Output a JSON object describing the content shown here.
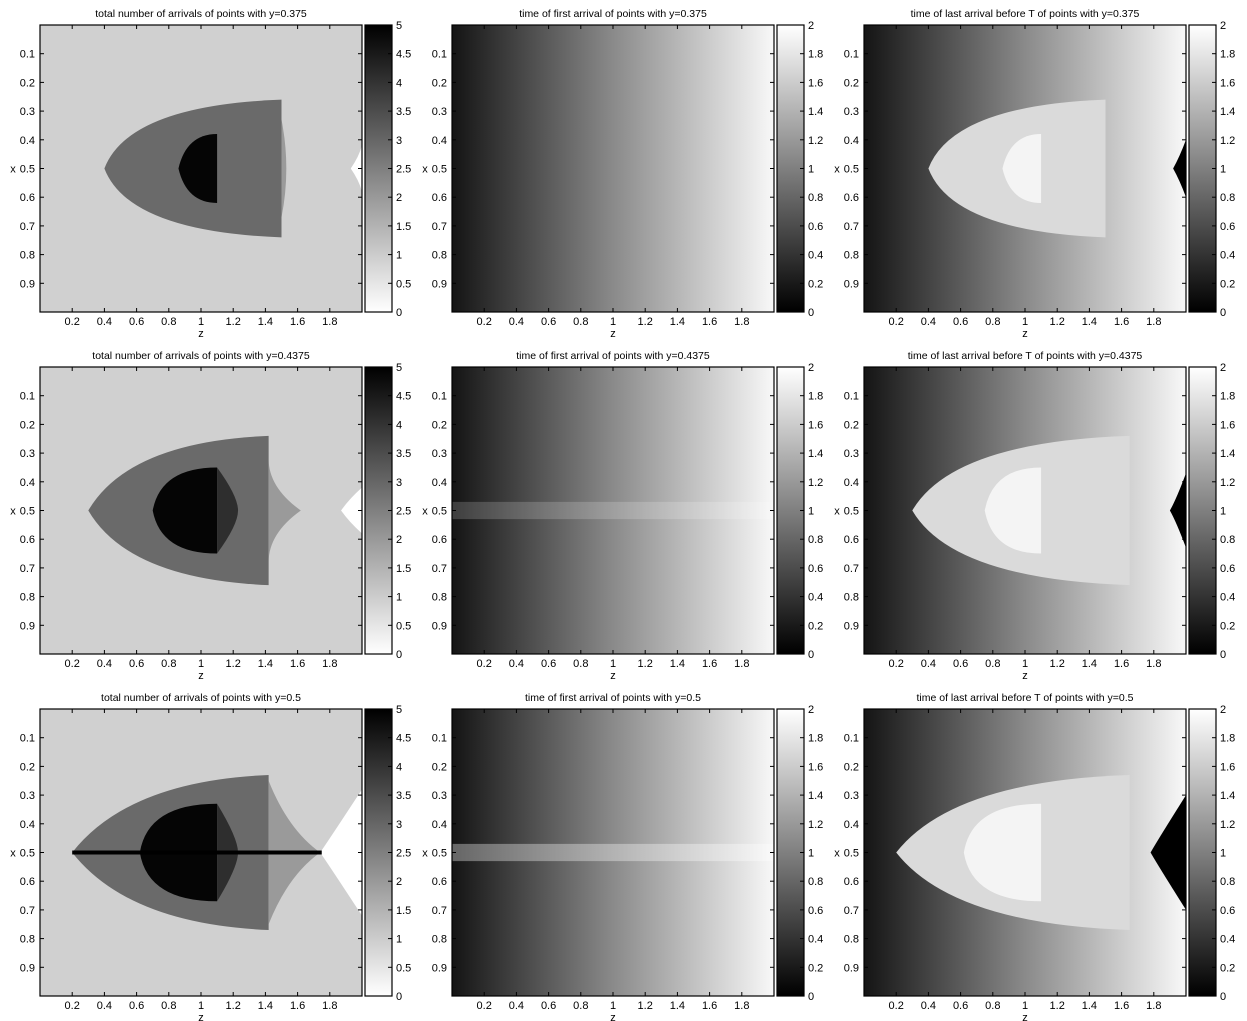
{
  "figure": {
    "panels": [
      {
        "title": "total number of arrivals of points with y=0.375",
        "kind": "count",
        "y": 0.375,
        "xlabel": "z",
        "ylabel": "x"
      },
      {
        "title": "time of first arrival of points with y=0.375",
        "kind": "first",
        "y": 0.375,
        "xlabel": "z",
        "ylabel": "x"
      },
      {
        "title": "time of last arrival before T of points with y=0.375",
        "kind": "last",
        "y": 0.375,
        "xlabel": "z",
        "ylabel": "x"
      },
      {
        "title": "total number of arrivals of points with y=0.4375",
        "kind": "count",
        "y": 0.4375,
        "xlabel": "z",
        "ylabel": "x"
      },
      {
        "title": "time of first arrival of points with y=0.4375",
        "kind": "first",
        "y": 0.4375,
        "xlabel": "z",
        "ylabel": "x"
      },
      {
        "title": "time of last arrival before T of points with y=0.4375",
        "kind": "last",
        "y": 0.4375,
        "xlabel": "z",
        "ylabel": "x"
      },
      {
        "title": "total number of arrivals of points with y=0.5",
        "kind": "count",
        "y": 0.5,
        "xlabel": "z",
        "ylabel": "x"
      },
      {
        "title": "time of first arrival of points with y=0.5",
        "kind": "first",
        "y": 0.5,
        "xlabel": "z",
        "ylabel": "x"
      },
      {
        "title": "time of last arrival before T of points with y=0.5",
        "kind": "last",
        "y": 0.5,
        "xlabel": "z",
        "ylabel": "x"
      }
    ]
  },
  "chart_data": [
    {
      "type": "heatmap",
      "title": "total number of arrivals of points with y=0.375",
      "xlabel": "z",
      "ylabel": "x",
      "xlim": [
        0,
        2
      ],
      "ylim": [
        0,
        1
      ],
      "y_reversed": true,
      "colormap": "gray-reversed",
      "clim": [
        0,
        5
      ],
      "xticks": [
        "0.2",
        "0.4",
        "0.6",
        "0.8",
        "1",
        "1.2",
        "1.4",
        "1.6",
        "1.8"
      ],
      "yticks": [
        "0.1",
        "0.2",
        "0.3",
        "0.4",
        "0.5",
        "0.6",
        "0.7",
        "0.8",
        "0.9"
      ],
      "colorbar_ticks": [
        "0",
        "0.5",
        "1",
        "1.5",
        "2",
        "2.5",
        "3",
        "3.5",
        "4",
        "4.5",
        "5"
      ]
    },
    {
      "type": "heatmap",
      "title": "time of first arrival of points with y=0.375",
      "xlabel": "z",
      "ylabel": "x",
      "xlim": [
        0,
        2
      ],
      "ylim": [
        0,
        1
      ],
      "y_reversed": true,
      "colormap": "gray",
      "clim": [
        0,
        2
      ],
      "xticks": [
        "0.2",
        "0.4",
        "0.6",
        "0.8",
        "1",
        "1.2",
        "1.4",
        "1.6",
        "1.8"
      ],
      "yticks": [
        "0.1",
        "0.2",
        "0.3",
        "0.4",
        "0.5",
        "0.6",
        "0.7",
        "0.8",
        "0.9"
      ],
      "colorbar_ticks": [
        "0",
        "0.2",
        "0.4",
        "0.6",
        "0.8",
        "1",
        "1.2",
        "1.4",
        "1.6",
        "1.8",
        "2"
      ]
    },
    {
      "type": "heatmap",
      "title": "time of last arrival before T of points with y=0.375",
      "xlabel": "z",
      "ylabel": "x",
      "xlim": [
        0,
        2
      ],
      "ylim": [
        0,
        1
      ],
      "y_reversed": true,
      "colormap": "gray",
      "clim": [
        0,
        2
      ],
      "xticks": [
        "0.2",
        "0.4",
        "0.6",
        "0.8",
        "1",
        "1.2",
        "1.4",
        "1.6",
        "1.8"
      ],
      "yticks": [
        "0.1",
        "0.2",
        "0.3",
        "0.4",
        "0.5",
        "0.6",
        "0.7",
        "0.8",
        "0.9"
      ],
      "colorbar_ticks": [
        "0",
        "0.2",
        "0.4",
        "0.6",
        "0.8",
        "1",
        "1.2",
        "1.4",
        "1.6",
        "1.8",
        "2"
      ]
    },
    {
      "type": "heatmap",
      "title": "total number of arrivals of points with y=0.4375",
      "xlabel": "z",
      "ylabel": "x",
      "xlim": [
        0,
        2
      ],
      "ylim": [
        0,
        1
      ],
      "y_reversed": true,
      "colormap": "gray-reversed",
      "clim": [
        0,
        5
      ],
      "xticks": [
        "0.2",
        "0.4",
        "0.6",
        "0.8",
        "1",
        "1.2",
        "1.4",
        "1.6",
        "1.8"
      ],
      "yticks": [
        "0.1",
        "0.2",
        "0.3",
        "0.4",
        "0.5",
        "0.6",
        "0.7",
        "0.8",
        "0.9"
      ],
      "colorbar_ticks": [
        "0",
        "0.5",
        "1",
        "1.5",
        "2",
        "2.5",
        "3",
        "3.5",
        "4",
        "4.5",
        "5"
      ]
    },
    {
      "type": "heatmap",
      "title": "time of first arrival of points with y=0.4375",
      "xlabel": "z",
      "ylabel": "x",
      "xlim": [
        0,
        2
      ],
      "ylim": [
        0,
        1
      ],
      "y_reversed": true,
      "colormap": "gray",
      "clim": [
        0,
        2
      ],
      "xticks": [
        "0.2",
        "0.4",
        "0.6",
        "0.8",
        "1",
        "1.2",
        "1.4",
        "1.6",
        "1.8"
      ],
      "yticks": [
        "0.1",
        "0.2",
        "0.3",
        "0.4",
        "0.5",
        "0.6",
        "0.7",
        "0.8",
        "0.9"
      ],
      "colorbar_ticks": [
        "0",
        "0.2",
        "0.4",
        "0.6",
        "0.8",
        "1",
        "1.2",
        "1.4",
        "1.6",
        "1.8",
        "2"
      ]
    },
    {
      "type": "heatmap",
      "title": "time of last arrival before T of points with y=0.4375",
      "xlabel": "z",
      "ylabel": "x",
      "xlim": [
        0,
        2
      ],
      "ylim": [
        0,
        1
      ],
      "y_reversed": true,
      "colormap": "gray",
      "clim": [
        0,
        2
      ],
      "xticks": [
        "0.2",
        "0.4",
        "0.6",
        "0.8",
        "1",
        "1.2",
        "1.4",
        "1.6",
        "1.8"
      ],
      "yticks": [
        "0.1",
        "0.2",
        "0.3",
        "0.4",
        "0.5",
        "0.6",
        "0.7",
        "0.8",
        "0.9"
      ],
      "colorbar_ticks": [
        "0",
        "0.2",
        "0.4",
        "0.6",
        "0.8",
        "1",
        "1.2",
        "1.4",
        "1.6",
        "1.8",
        "2"
      ]
    },
    {
      "type": "heatmap",
      "title": "total number of arrivals of points with y=0.5",
      "xlabel": "z",
      "ylabel": "x",
      "xlim": [
        0,
        2
      ],
      "ylim": [
        0,
        1
      ],
      "y_reversed": true,
      "colormap": "gray-reversed",
      "clim": [
        0,
        5
      ],
      "xticks": [
        "0.2",
        "0.4",
        "0.6",
        "0.8",
        "1",
        "1.2",
        "1.4",
        "1.6",
        "1.8"
      ],
      "yticks": [
        "0.1",
        "0.2",
        "0.3",
        "0.4",
        "0.5",
        "0.6",
        "0.7",
        "0.8",
        "0.9"
      ],
      "colorbar_ticks": [
        "0",
        "0.5",
        "1",
        "1.5",
        "2",
        "2.5",
        "3",
        "3.5",
        "4",
        "4.5",
        "5"
      ]
    },
    {
      "type": "heatmap",
      "title": "time of first arrival of points with y=0.5",
      "xlabel": "z",
      "ylabel": "x",
      "xlim": [
        0,
        2
      ],
      "ylim": [
        0,
        1
      ],
      "y_reversed": true,
      "colormap": "gray",
      "clim": [
        0,
        2
      ],
      "xticks": [
        "0.2",
        "0.4",
        "0.6",
        "0.8",
        "1",
        "1.2",
        "1.4",
        "1.6",
        "1.8"
      ],
      "yticks": [
        "0.1",
        "0.2",
        "0.3",
        "0.4",
        "0.5",
        "0.6",
        "0.7",
        "0.8",
        "0.9"
      ],
      "colorbar_ticks": [
        "0",
        "0.2",
        "0.4",
        "0.6",
        "0.8",
        "1",
        "1.2",
        "1.4",
        "1.6",
        "1.8",
        "2"
      ]
    },
    {
      "type": "heatmap",
      "title": "time of last arrival before T of points with y=0.5",
      "xlabel": "z",
      "ylabel": "x",
      "xlim": [
        0,
        2
      ],
      "ylim": [
        0,
        1
      ],
      "y_reversed": true,
      "colormap": "gray",
      "clim": [
        0,
        2
      ],
      "xticks": [
        "0.2",
        "0.4",
        "0.6",
        "0.8",
        "1",
        "1.2",
        "1.4",
        "1.6",
        "1.8"
      ],
      "yticks": [
        "0.1",
        "0.2",
        "0.3",
        "0.4",
        "0.5",
        "0.6",
        "0.7",
        "0.8",
        "0.9"
      ],
      "colorbar_ticks": [
        "0",
        "0.2",
        "0.4",
        "0.6",
        "0.8",
        "1",
        "1.2",
        "1.4",
        "1.6",
        "1.8",
        "2"
      ]
    }
  ]
}
